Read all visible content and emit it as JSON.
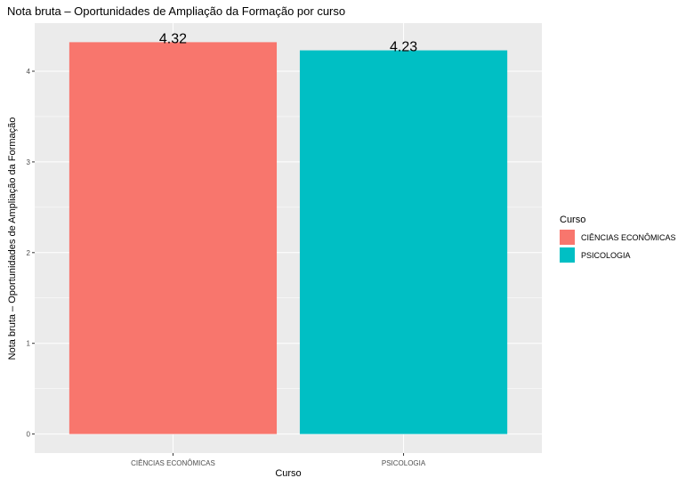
{
  "chart_data": {
    "type": "bar",
    "title": "Nota bruta – Oportunidades de Ampliação da Formação por curso",
    "xlabel": "Curso",
    "ylabel": "Nota bruta – Oportunidades de Ampliação da Formação",
    "categories": [
      "CIÊNCIAS ECONÔMICAS",
      "PSICOLOGIA"
    ],
    "values": [
      4.32,
      4.23
    ],
    "data_labels": [
      "4.32",
      "4.23"
    ],
    "colors": [
      "#F8766D",
      "#00BFC4"
    ],
    "ylim": [
      -0.21,
      4.53
    ],
    "yticks": [
      0,
      1,
      2,
      3,
      4
    ],
    "ytick_labels": [
      "0",
      "1",
      "2",
      "3",
      "4"
    ],
    "grid": true,
    "panel_background": "#EBEBEB",
    "grid_color": "#FFFFFF",
    "legend": {
      "title": "Curso",
      "position": "right",
      "items": [
        {
          "label": "CIÊNCIAS ECONÔMICAS",
          "color": "#F8766D"
        },
        {
          "label": "PSICOLOGIA",
          "color": "#00BFC4"
        }
      ]
    }
  }
}
